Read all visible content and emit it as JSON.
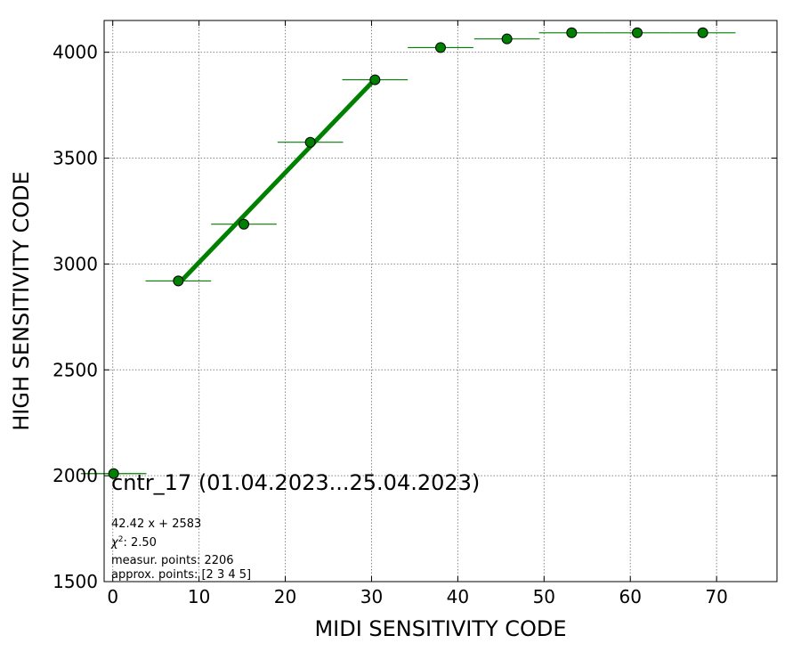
{
  "chart_data": {
    "type": "scatter",
    "title": "cntr_17 (01.04.2023...25.04.2023)",
    "xlabel": "MIDI SENSITIVITY CODE",
    "ylabel": "HIGH SENSITIVITY CODE",
    "xlim": [
      -1,
      77
    ],
    "ylim": [
      1500,
      4150
    ],
    "xticks": [
      0,
      10,
      20,
      30,
      40,
      50,
      60,
      70
    ],
    "yticks": [
      1500,
      2000,
      2500,
      3000,
      3500,
      4000
    ],
    "grid": true,
    "point_color": "#008000",
    "fit_color": "#008000",
    "points": [
      {
        "x": 0.1,
        "y": 2010,
        "xerr": 3.8,
        "yerr": 0
      },
      {
        "x": 7.6,
        "y": 2920,
        "xerr": 3.8,
        "yerr": 8
      },
      {
        "x": 15.2,
        "y": 3188,
        "xerr": 3.8,
        "yerr": 10
      },
      {
        "x": 22.9,
        "y": 3575,
        "xerr": 3.8,
        "yerr": 20
      },
      {
        "x": 30.4,
        "y": 3870,
        "xerr": 3.8,
        "yerr": 15
      },
      {
        "x": 38.0,
        "y": 4022,
        "xerr": 3.8,
        "yerr": 0
      },
      {
        "x": 45.7,
        "y": 4063,
        "xerr": 3.8,
        "yerr": 0
      },
      {
        "x": 53.2,
        "y": 4092,
        "xerr": 3.8,
        "yerr": 0
      },
      {
        "x": 60.8,
        "y": 4092,
        "xerr": 3.8,
        "yerr": 0
      },
      {
        "x": 68.4,
        "y": 4092,
        "xerr": 3.8,
        "yerr": 0
      }
    ],
    "fit": {
      "slope": 42.42,
      "intercept": 2583,
      "x_range": [
        7.6,
        30.4
      ]
    },
    "annotations": [
      "42.42 x + 2583",
      "χ",
      "2",
      ": 2.50",
      "measur. points: 2206",
      "approx. points: [2 3 4 5]"
    ]
  }
}
